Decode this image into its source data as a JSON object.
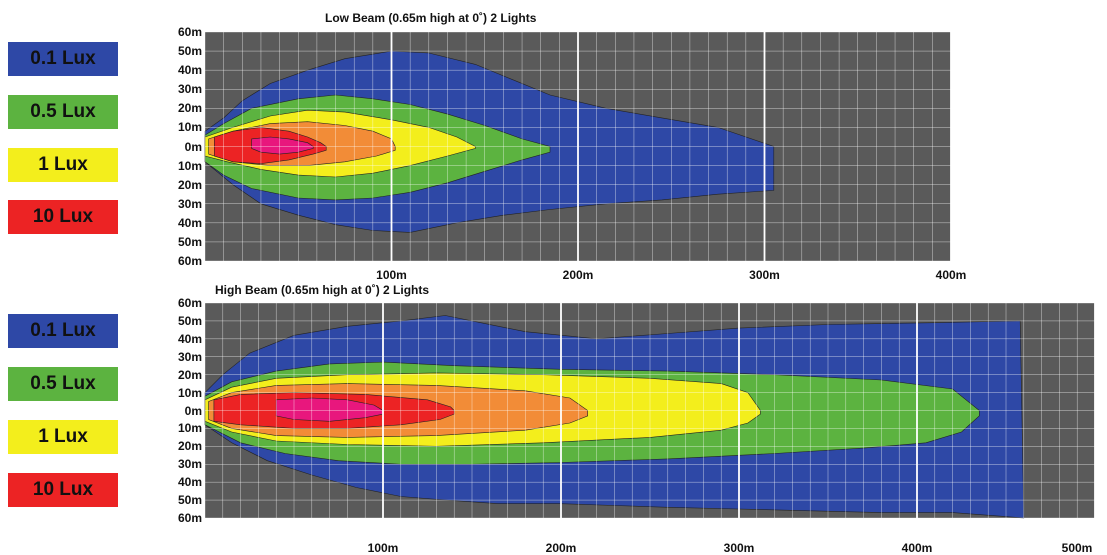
{
  "legend": {
    "items": [
      {
        "label": "0.1 Lux",
        "color": "#2e48a6"
      },
      {
        "label": "0.5 Lux",
        "color": "#5cb340"
      },
      {
        "label": "1 Lux",
        "color": "#f3ee1c"
      },
      {
        "label": "10 Lux",
        "color": "#ec2324"
      }
    ]
  },
  "chart_data": [
    {
      "type": "area",
      "title": "Low Beam (0.65m high at 0˚) 2 Lights",
      "x_ticks": [
        "100m",
        "200m",
        "300m",
        "400m"
      ],
      "y_ticks": [
        "60m",
        "50m",
        "40m",
        "30m",
        "20m",
        "10m",
        "0m",
        "10m",
        "20m",
        "30m",
        "40m",
        "50m",
        "60m"
      ],
      "xlim": [
        0,
        400
      ],
      "ylim": [
        -60,
        60
      ],
      "grid": true,
      "series": [
        {
          "name": "0.1 Lux",
          "color": "#2e48a6",
          "upper": [
            [
              0,
              8
            ],
            [
              10,
              15
            ],
            [
              20,
              24
            ],
            [
              35,
              33
            ],
            [
              55,
              40
            ],
            [
              75,
              46
            ],
            [
              100,
              50
            ],
            [
              120,
              49
            ],
            [
              145,
              43
            ],
            [
              165,
              35
            ],
            [
              185,
              27
            ],
            [
              215,
              20
            ],
            [
              245,
              15
            ],
            [
              275,
              10
            ],
            [
              305,
              0
            ]
          ],
          "lower": [
            [
              305,
              -23
            ],
            [
              275,
              -25
            ],
            [
              245,
              -28
            ],
            [
              215,
              -30
            ],
            [
              185,
              -33
            ],
            [
              160,
              -36
            ],
            [
              135,
              -40
            ],
            [
              110,
              -45
            ],
            [
              90,
              -44
            ],
            [
              70,
              -41
            ],
            [
              50,
              -36
            ],
            [
              30,
              -30
            ],
            [
              15,
              -20
            ],
            [
              0,
              -8
            ]
          ]
        },
        {
          "name": "0.5 Lux",
          "color": "#5cb340",
          "upper": [
            [
              0,
              6
            ],
            [
              10,
              12
            ],
            [
              25,
              20
            ],
            [
              50,
              25
            ],
            [
              70,
              27
            ],
            [
              90,
              25
            ],
            [
              110,
              22
            ],
            [
              130,
              17
            ],
            [
              150,
              11
            ],
            [
              170,
              4
            ],
            [
              185,
              0
            ]
          ],
          "lower": [
            [
              185,
              -3
            ],
            [
              170,
              -7
            ],
            [
              150,
              -13
            ],
            [
              130,
              -19
            ],
            [
              110,
              -24
            ],
            [
              90,
              -27
            ],
            [
              70,
              -28
            ],
            [
              50,
              -27
            ],
            [
              25,
              -22
            ],
            [
              10,
              -15
            ],
            [
              0,
              -8
            ]
          ]
        },
        {
          "name": "1 Lux",
          "color": "#f3ee1c",
          "upper": [
            [
              0,
              5
            ],
            [
              15,
              10
            ],
            [
              35,
              16
            ],
            [
              55,
              19
            ],
            [
              75,
              18
            ],
            [
              100,
              14
            ],
            [
              120,
              10
            ],
            [
              135,
              5
            ],
            [
              145,
              0
            ]
          ],
          "lower": [
            [
              145,
              -1
            ],
            [
              130,
              -5
            ],
            [
              110,
              -10
            ],
            [
              90,
              -14
            ],
            [
              70,
              -16
            ],
            [
              50,
              -15
            ],
            [
              30,
              -12
            ],
            [
              12,
              -8
            ],
            [
              0,
              -5
            ]
          ]
        },
        {
          "name": "",
          "color": "#f28c37",
          "upper": [
            [
              2,
              4
            ],
            [
              15,
              8
            ],
            [
              35,
              12
            ],
            [
              55,
              13
            ],
            [
              75,
              11
            ],
            [
              90,
              8
            ],
            [
              100,
              4
            ],
            [
              102,
              0
            ]
          ],
          "lower": [
            [
              102,
              -2
            ],
            [
              92,
              -5
            ],
            [
              75,
              -8
            ],
            [
              55,
              -10
            ],
            [
              35,
              -10
            ],
            [
              15,
              -8
            ],
            [
              2,
              -4
            ]
          ]
        },
        {
          "name": "10 Lux",
          "color": "#ec2324",
          "upper": [
            [
              5,
              5
            ],
            [
              15,
              8
            ],
            [
              30,
              10
            ],
            [
              45,
              8
            ],
            [
              55,
              5
            ],
            [
              62,
              2
            ],
            [
              65,
              0
            ]
          ],
          "lower": [
            [
              65,
              -2
            ],
            [
              58,
              -4
            ],
            [
              45,
              -7
            ],
            [
              30,
              -9
            ],
            [
              15,
              -8
            ],
            [
              5,
              -5
            ]
          ]
        },
        {
          "name": "",
          "color": "#e8177d",
          "upper": [
            [
              25,
              4
            ],
            [
              35,
              5
            ],
            [
              45,
              4
            ],
            [
              55,
              2
            ],
            [
              58,
              0
            ]
          ],
          "lower": [
            [
              58,
              -1
            ],
            [
              50,
              -3
            ],
            [
              40,
              -4
            ],
            [
              30,
              -3
            ],
            [
              25,
              -1
            ]
          ]
        }
      ]
    },
    {
      "type": "area",
      "title": "High Beam (0.65m high at 0˚) 2 Lights",
      "x_ticks": [
        "100m",
        "200m",
        "300m",
        "400m",
        "500m"
      ],
      "y_ticks": [
        "60m",
        "50m",
        "40m",
        "30m",
        "20m",
        "10m",
        "0m",
        "10m",
        "20m",
        "30m",
        "40m",
        "50m",
        "60m"
      ],
      "xlim": [
        0,
        500
      ],
      "ylim": [
        -60,
        60
      ],
      "grid": true,
      "series": [
        {
          "name": "0.1 Lux",
          "color": "#2e48a6",
          "upper": [
            [
              0,
              10
            ],
            [
              10,
              20
            ],
            [
              25,
              32
            ],
            [
              50,
              42
            ],
            [
              80,
              47
            ],
            [
              110,
              50
            ],
            [
              135,
              53
            ],
            [
              150,
              50
            ],
            [
              180,
              44
            ],
            [
              220,
              40
            ],
            [
              260,
              43
            ],
            [
              300,
              46
            ],
            [
              350,
              48
            ],
            [
              410,
              49
            ],
            [
              458,
              50
            ],
            [
              460,
              -60
            ]
          ],
          "lower": [
            [
              460,
              -60
            ],
            [
              420,
              -57
            ],
            [
              380,
              -57
            ],
            [
              340,
              -56
            ],
            [
              300,
              -55
            ],
            [
              260,
              -54
            ],
            [
              230,
              -53
            ],
            [
              200,
              -52
            ],
            [
              165,
              -52
            ],
            [
              135,
              -50
            ],
            [
              110,
              -48
            ],
            [
              85,
              -43
            ],
            [
              60,
              -36
            ],
            [
              35,
              -28
            ],
            [
              15,
              -18
            ],
            [
              0,
              -8
            ]
          ]
        },
        {
          "name": "0.5 Lux",
          "color": "#5cb340",
          "upper": [
            [
              0,
              8
            ],
            [
              15,
              16
            ],
            [
              40,
              22
            ],
            [
              70,
              26
            ],
            [
              100,
              27
            ],
            [
              140,
              25
            ],
            [
              200,
              23
            ],
            [
              260,
              22
            ],
            [
              320,
              20
            ],
            [
              380,
              17
            ],
            [
              420,
              12
            ],
            [
              435,
              0
            ]
          ],
          "lower": [
            [
              435,
              -3
            ],
            [
              425,
              -12
            ],
            [
              405,
              -18
            ],
            [
              370,
              -21
            ],
            [
              320,
              -24
            ],
            [
              260,
              -27
            ],
            [
              200,
              -29
            ],
            [
              150,
              -30
            ],
            [
              110,
              -30
            ],
            [
              75,
              -28
            ],
            [
              45,
              -24
            ],
            [
              20,
              -18
            ],
            [
              0,
              -8
            ]
          ]
        },
        {
          "name": "1 Lux",
          "color": "#f3ee1c",
          "upper": [
            [
              0,
              6
            ],
            [
              15,
              13
            ],
            [
              40,
              18
            ],
            [
              80,
              20
            ],
            [
              130,
              21
            ],
            [
              190,
              20
            ],
            [
              250,
              18
            ],
            [
              290,
              15
            ],
            [
              305,
              10
            ],
            [
              312,
              0
            ]
          ],
          "lower": [
            [
              312,
              -2
            ],
            [
              305,
              -7
            ],
            [
              290,
              -11
            ],
            [
              250,
              -15
            ],
            [
              190,
              -18
            ],
            [
              130,
              -20
            ],
            [
              80,
              -19
            ],
            [
              40,
              -17
            ],
            [
              15,
              -12
            ],
            [
              0,
              -6
            ]
          ]
        },
        {
          "name": "",
          "color": "#f28c37",
          "upper": [
            [
              2,
              5
            ],
            [
              15,
              10
            ],
            [
              40,
              14
            ],
            [
              80,
              15
            ],
            [
              130,
              14
            ],
            [
              180,
              11
            ],
            [
              205,
              7
            ],
            [
              215,
              0
            ]
          ],
          "lower": [
            [
              215,
              -3
            ],
            [
              205,
              -7
            ],
            [
              180,
              -11
            ],
            [
              130,
              -14
            ],
            [
              80,
              -15
            ],
            [
              40,
              -14
            ],
            [
              15,
              -10
            ],
            [
              2,
              -5
            ]
          ]
        },
        {
          "name": "10 Lux",
          "color": "#ec2324",
          "upper": [
            [
              5,
              6
            ],
            [
              20,
              9
            ],
            [
              50,
              10
            ],
            [
              90,
              9
            ],
            [
              125,
              6
            ],
            [
              138,
              2
            ],
            [
              140,
              0
            ]
          ],
          "lower": [
            [
              140,
              -2
            ],
            [
              132,
              -5
            ],
            [
              110,
              -8
            ],
            [
              80,
              -10
            ],
            [
              50,
              -10
            ],
            [
              20,
              -8
            ],
            [
              5,
              -6
            ]
          ]
        },
        {
          "name": "",
          "color": "#e8177d",
          "upper": [
            [
              40,
              6
            ],
            [
              60,
              7
            ],
            [
              80,
              6
            ],
            [
              95,
              3
            ],
            [
              100,
              0
            ]
          ],
          "lower": [
            [
              100,
              -2
            ],
            [
              90,
              -4
            ],
            [
              70,
              -6
            ],
            [
              50,
              -5
            ],
            [
              40,
              -3
            ]
          ]
        }
      ]
    }
  ]
}
